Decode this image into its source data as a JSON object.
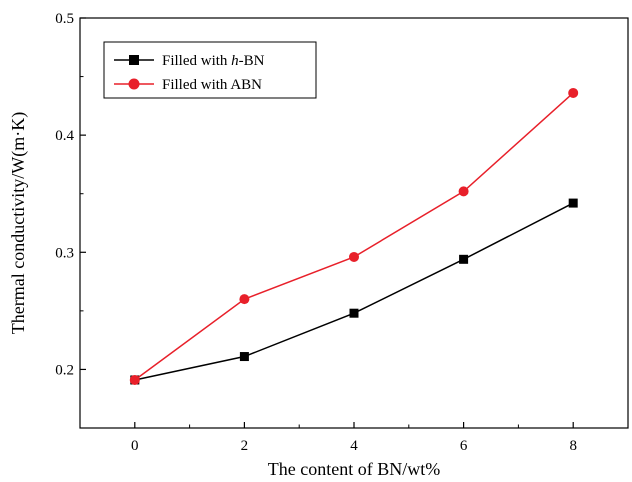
{
  "chart_data": {
    "type": "line",
    "title": "",
    "xlabel": "The content of BN/wt%",
    "ylabel": "Thermal conductivity/W(m·K)",
    "x": [
      0,
      2,
      4,
      6,
      8
    ],
    "xticks": [
      0,
      2,
      4,
      6,
      8
    ],
    "xtick_labels": [
      "0",
      "2",
      "4",
      "6",
      "8"
    ],
    "yticks": [
      0.2,
      0.3,
      0.4,
      0.5
    ],
    "ytick_labels": [
      "0.2",
      "0.3",
      "0.4",
      "0.5"
    ],
    "xlim": [
      -1,
      9
    ],
    "ylim": [
      0.15,
      0.5
    ],
    "grid": false,
    "legend_position": "top-left",
    "series": [
      {
        "name": "Filled with h-BN",
        "legend_prefix": "Filled with ",
        "legend_italic": "h",
        "legend_suffix": "-BN",
        "values": [
          0.191,
          0.211,
          0.248,
          0.294,
          0.342
        ],
        "color": "#000000",
        "marker": "square"
      },
      {
        "name": "Filled with ABN",
        "legend_prefix": "Filled with ABN",
        "legend_italic": "",
        "legend_suffix": "",
        "values": [
          0.191,
          0.26,
          0.296,
          0.352,
          0.436
        ],
        "color": "#e8202a",
        "marker": "circle"
      }
    ]
  }
}
